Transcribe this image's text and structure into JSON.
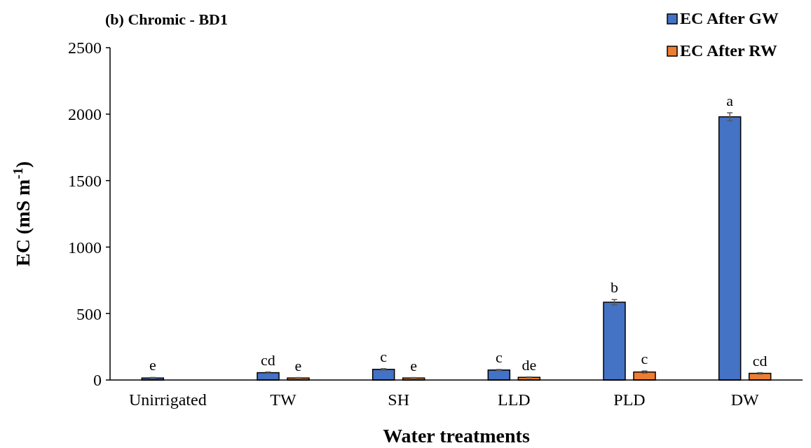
{
  "chart_data": {
    "type": "bar",
    "title": "(b) Chromic - BD1",
    "xlabel": "Water treatments",
    "ylabel": "EC (mS m$^{-1}$)",
    "categories": [
      "Unirrigated",
      "TW",
      "SH",
      "LLD",
      "PLD",
      "DW"
    ],
    "series": [
      {
        "name": "EC After GW",
        "color": "#4472c4",
        "values": [
          15,
          55,
          80,
          75,
          585,
          1980
        ],
        "errors": [
          4,
          5,
          5,
          4,
          20,
          30
        ]
      },
      {
        "name": "EC After RW",
        "color": "#ed7d31",
        "values": [
          null,
          15,
          15,
          20,
          60,
          50
        ],
        "errors": [
          null,
          3,
          3,
          3,
          8,
          5
        ]
      }
    ],
    "ylim": [
      0,
      2500
    ],
    "yticks": [
      0,
      500,
      1000,
      1500,
      2000,
      2500
    ],
    "grid": false,
    "legend": "top right",
    "annotations": [
      "e",
      "cd",
      "e",
      "c",
      "e",
      "c",
      "de",
      "b",
      "c",
      "a",
      "cd"
    ]
  }
}
